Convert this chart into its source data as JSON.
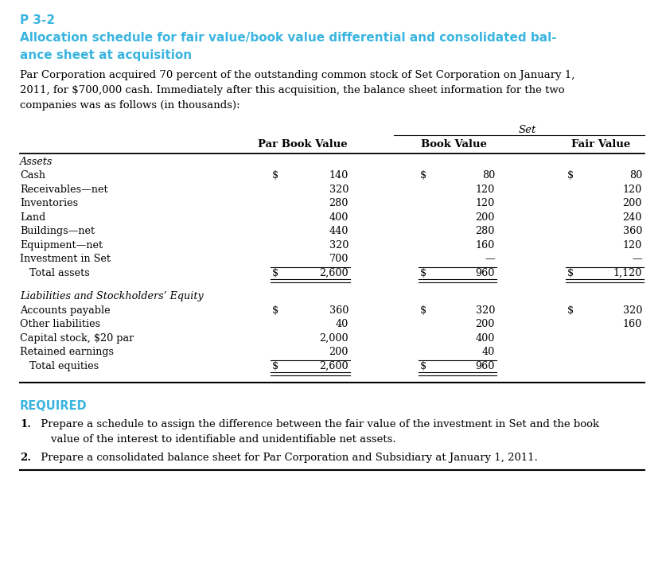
{
  "title_label": "P 3-2",
  "title_main_line1": "Allocation schedule for fair value/book value differential and consolidated bal-",
  "title_main_line2": "ance sheet at acquisition",
  "title_color": "#3ab5e0",
  "body_lines": [
    "Par Corporation acquired 70 percent of the outstanding common stock of Set Corporation on January 1,",
    "2011, for $700,000 cash. Immediately after this acquisition, the balance sheet information for the two",
    "companies was as follows (in thousands):"
  ],
  "set_label": "Set",
  "col_headers": [
    "Par Book Value",
    "Book Value",
    "Fair Value"
  ],
  "assets_label": "Assets",
  "asset_rows": [
    {
      "label": "Cash",
      "par_d": "$",
      "par_n": "140",
      "bv_d": "$",
      "bv_n": "80",
      "fv_d": "$",
      "fv_n": "80",
      "total": false
    },
    {
      "label": "Receivables—net",
      "par_d": "",
      "par_n": "320",
      "bv_d": "",
      "bv_n": "120",
      "fv_d": "",
      "fv_n": "120",
      "total": false
    },
    {
      "label": "Inventories",
      "par_d": "",
      "par_n": "280",
      "bv_d": "",
      "bv_n": "120",
      "fv_d": "",
      "fv_n": "200",
      "total": false
    },
    {
      "label": "Land",
      "par_d": "",
      "par_n": "400",
      "bv_d": "",
      "bv_n": "200",
      "fv_d": "",
      "fv_n": "240",
      "total": false
    },
    {
      "label": "Buildings—net",
      "par_d": "",
      "par_n": "440",
      "bv_d": "",
      "bv_n": "280",
      "fv_d": "",
      "fv_n": "360",
      "total": false
    },
    {
      "label": "Equipment—net",
      "par_d": "",
      "par_n": "320",
      "bv_d": "",
      "bv_n": "160",
      "fv_d": "",
      "fv_n": "120",
      "total": false
    },
    {
      "label": "Investment in Set",
      "par_d": "",
      "par_n": "700",
      "bv_d": "",
      "bv_n": "—",
      "fv_d": "",
      "fv_n": "—",
      "total": false
    },
    {
      "label": "   Total assets",
      "par_d": "$",
      "par_n": "2,600",
      "bv_d": "$",
      "bv_n": "960",
      "fv_d": "$",
      "fv_n": "1,120",
      "total": true
    }
  ],
  "liab_label": "Liabilities and Stockholders’ Equity",
  "liab_rows": [
    {
      "label": "Accounts payable",
      "par_d": "$",
      "par_n": "360",
      "bv_d": "$",
      "bv_n": "320",
      "fv_d": "$",
      "fv_n": "320",
      "total": false
    },
    {
      "label": "Other liabilities",
      "par_d": "",
      "par_n": "40",
      "bv_d": "",
      "bv_n": "200",
      "fv_d": "",
      "fv_n": "160",
      "total": false
    },
    {
      "label": "Capital stock, $20 par",
      "par_d": "",
      "par_n": "2,000",
      "bv_d": "",
      "bv_n": "400",
      "fv_d": "",
      "fv_n": "",
      "total": false
    },
    {
      "label": "Retained earnings",
      "par_d": "",
      "par_n": "200",
      "bv_d": "",
      "bv_n": "40",
      "fv_d": "",
      "fv_n": "",
      "total": false
    },
    {
      "label": "   Total equities",
      "par_d": "$",
      "par_n": "2,600",
      "bv_d": "$",
      "bv_n": "960",
      "fv_d": "",
      "fv_n": "",
      "total": true
    }
  ],
  "required_label": "REQUIRED",
  "required_color": "#3ab5e0",
  "req1_bold": "1.",
  "req1_text": " Prepare a schedule to assign the difference between the fair value of the investment in Set and the book",
  "req1_cont": "    value of the interest to identifiable and unidentifiable net assets.",
  "req2_bold": "2.",
  "req2_text": " Prepare a consolidated balance sheet for Par Corporation and Subsidiary at January 1, 2011.",
  "bg_color": "#ffffff",
  "text_color": "#000000",
  "line_color": "#000000"
}
